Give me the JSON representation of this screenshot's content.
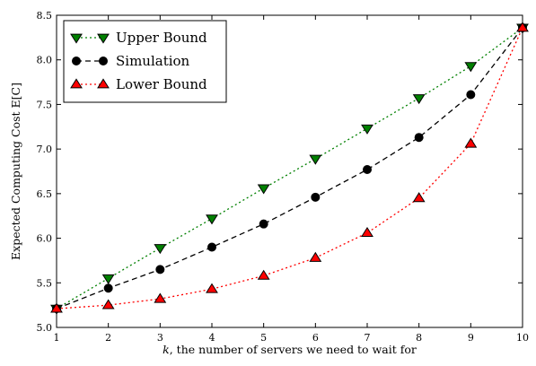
{
  "chart_data": {
    "type": "line",
    "title": "",
    "xlabel_italic": "k",
    "xlabel_rest": ", the number of servers we need to wait for",
    "ylabel": "Expected Computing Cost E[C]",
    "xlim": [
      1,
      10
    ],
    "ylim": [
      5.0,
      8.5
    ],
    "x_ticks": [
      1,
      2,
      3,
      4,
      5,
      6,
      7,
      8,
      9,
      10
    ],
    "y_ticks": [
      "5.0",
      "5.5",
      "6.0",
      "6.5",
      "7.0",
      "7.5",
      "8.0",
      "8.5"
    ],
    "grid": false,
    "legend_position": "top-left",
    "x": [
      1,
      2,
      3,
      4,
      5,
      6,
      7,
      8,
      9,
      10
    ],
    "series": [
      {
        "name": "Upper Bound",
        "marker": "triangle-down",
        "line_style": "dotted",
        "color": "#008000",
        "values": [
          5.21,
          5.55,
          5.89,
          6.22,
          6.56,
          6.89,
          7.23,
          7.57,
          7.93,
          8.36
        ]
      },
      {
        "name": "Simulation",
        "marker": "circle",
        "line_style": "dashed",
        "color": "#000000",
        "values": [
          5.21,
          5.44,
          5.65,
          5.9,
          6.16,
          6.46,
          6.77,
          7.13,
          7.61,
          8.36
        ]
      },
      {
        "name": "Lower Bound",
        "marker": "triangle-up",
        "line_style": "dotted",
        "color": "#ff0000",
        "values": [
          5.21,
          5.25,
          5.32,
          5.43,
          5.58,
          5.78,
          6.06,
          6.45,
          7.06,
          8.36
        ]
      }
    ]
  }
}
